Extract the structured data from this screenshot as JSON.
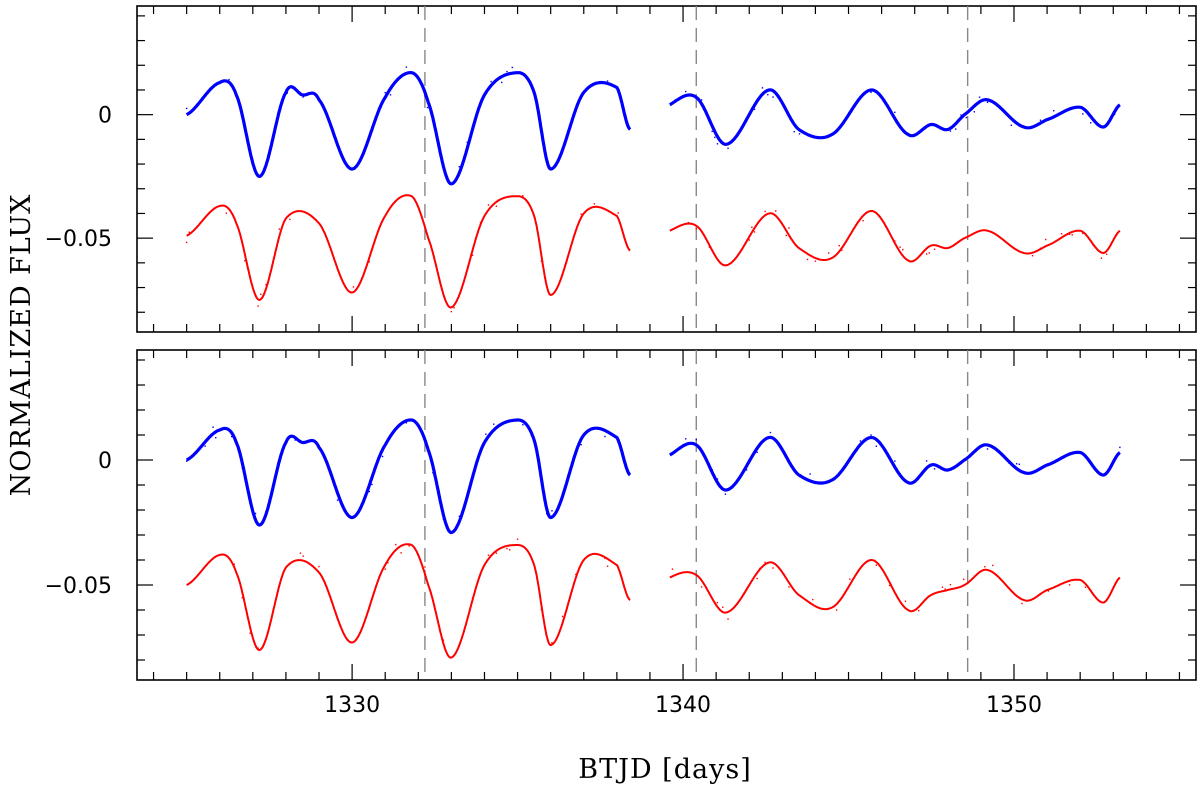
{
  "chart_data": {
    "type": "scatter",
    "xlabel": "BTJD [days]",
    "ylabel": "NORMALIZED FLUX",
    "xlim": [
      1323.5,
      1355.5
    ],
    "x_ticks_major": [
      1330,
      1340,
      1350
    ],
    "x_tick_labels": [
      "1330",
      "1340",
      "1350"
    ],
    "ylim": [
      -0.088,
      0.044
    ],
    "y_ticks_major": [
      0,
      -0.05
    ],
    "y_tick_labels": [
      "0",
      "-0.05"
    ],
    "vertical_markers": [
      1332.2,
      1340.4,
      1348.6
    ],
    "gap": [
      1338.4,
      1339.6
    ],
    "panels": [
      {
        "name": "top",
        "series": [
          {
            "name": "blue-series",
            "color": "#0000ff",
            "x": [
              1325.0,
              1326.0,
              1326.5,
              1327.2,
              1328.0,
              1328.5,
              1329.0,
              1330.0,
              1331.0,
              1331.8,
              1332.3,
              1333.0,
              1334.0,
              1335.0,
              1335.5,
              1336.0,
              1337.0,
              1338.0,
              1338.4,
              1339.6,
              1340.4,
              1341.3,
              1342.6,
              1343.5,
              1344.5,
              1345.7,
              1346.8,
              1347.5,
              1348.0,
              1348.5,
              1349.2,
              1350.3,
              1351.0,
              1352.0,
              1352.7,
              1353.2
            ],
            "y": [
              0.0,
              0.013,
              0.008,
              -0.025,
              0.009,
              0.008,
              0.006,
              -0.022,
              0.007,
              0.017,
              0.005,
              -0.028,
              0.008,
              0.017,
              0.009,
              -0.022,
              0.009,
              0.011,
              -0.006,
              0.004,
              0.007,
              -0.012,
              0.01,
              -0.006,
              -0.008,
              0.01,
              -0.008,
              -0.004,
              -0.006,
              0.0,
              0.006,
              -0.005,
              -0.002,
              0.003,
              -0.005,
              0.004
            ]
          },
          {
            "name": "red-series",
            "color": "#ff0000",
            "x": [
              1325.0,
              1326.0,
              1326.5,
              1327.2,
              1328.0,
              1329.0,
              1330.0,
              1331.0,
              1331.8,
              1332.3,
              1333.0,
              1334.0,
              1335.0,
              1335.5,
              1336.0,
              1337.0,
              1338.0,
              1338.4,
              1339.6,
              1340.4,
              1341.3,
              1342.6,
              1343.5,
              1344.5,
              1345.7,
              1346.8,
              1347.5,
              1348.0,
              1348.5,
              1349.2,
              1350.3,
              1351.0,
              1352.0,
              1352.7,
              1353.2
            ],
            "y": [
              -0.049,
              -0.037,
              -0.044,
              -0.075,
              -0.042,
              -0.044,
              -0.072,
              -0.041,
              -0.033,
              -0.05,
              -0.078,
              -0.041,
              -0.033,
              -0.041,
              -0.073,
              -0.04,
              -0.041,
              -0.055,
              -0.047,
              -0.045,
              -0.061,
              -0.04,
              -0.054,
              -0.058,
              -0.039,
              -0.059,
              -0.053,
              -0.054,
              -0.05,
              -0.047,
              -0.056,
              -0.053,
              -0.047,
              -0.056,
              -0.047
            ]
          }
        ]
      },
      {
        "name": "bottom",
        "series": [
          {
            "name": "blue-series",
            "color": "#0000ff",
            "x": [
              1325.0,
              1326.0,
              1326.5,
              1327.2,
              1328.0,
              1328.5,
              1329.0,
              1330.0,
              1331.0,
              1331.8,
              1332.3,
              1333.0,
              1334.0,
              1335.0,
              1335.5,
              1336.0,
              1337.0,
              1338.0,
              1338.4,
              1339.6,
              1340.4,
              1341.3,
              1342.6,
              1343.5,
              1344.5,
              1345.7,
              1346.8,
              1347.5,
              1348.0,
              1348.5,
              1349.2,
              1350.3,
              1351.0,
              1352.0,
              1352.7,
              1353.2
            ],
            "y": [
              0.0,
              0.012,
              0.007,
              -0.026,
              0.007,
              0.007,
              0.005,
              -0.023,
              0.006,
              0.016,
              0.004,
              -0.029,
              0.007,
              0.016,
              0.008,
              -0.023,
              0.01,
              0.009,
              -0.006,
              0.002,
              0.006,
              -0.012,
              0.009,
              -0.006,
              -0.008,
              0.009,
              -0.009,
              -0.002,
              -0.004,
              0.0,
              0.006,
              -0.005,
              -0.002,
              0.003,
              -0.006,
              0.003
            ]
          },
          {
            "name": "red-series",
            "color": "#ff0000",
            "x": [
              1325.0,
              1326.0,
              1326.5,
              1327.2,
              1328.0,
              1329.0,
              1330.0,
              1331.0,
              1331.8,
              1332.3,
              1333.0,
              1334.0,
              1335.0,
              1335.5,
              1336.0,
              1337.0,
              1338.0,
              1338.4,
              1339.6,
              1340.4,
              1341.3,
              1342.6,
              1343.5,
              1344.5,
              1345.7,
              1346.8,
              1347.5,
              1348.0,
              1348.5,
              1349.2,
              1350.3,
              1351.0,
              1352.0,
              1352.7,
              1353.2
            ],
            "y": [
              -0.05,
              -0.038,
              -0.045,
              -0.076,
              -0.043,
              -0.045,
              -0.073,
              -0.042,
              -0.034,
              -0.05,
              -0.079,
              -0.042,
              -0.034,
              -0.042,
              -0.074,
              -0.04,
              -0.042,
              -0.056,
              -0.047,
              -0.046,
              -0.061,
              -0.041,
              -0.054,
              -0.059,
              -0.04,
              -0.06,
              -0.054,
              -0.052,
              -0.05,
              -0.044,
              -0.056,
              -0.052,
              -0.048,
              -0.057,
              -0.047
            ]
          }
        ]
      }
    ]
  }
}
